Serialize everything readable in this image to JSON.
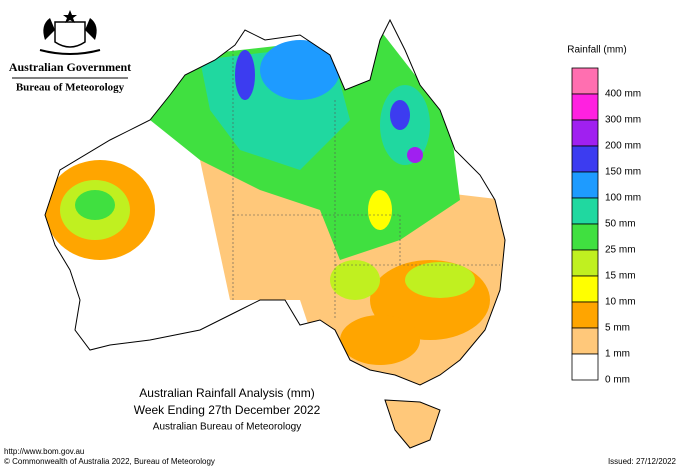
{
  "header": {
    "government": "Australian Government",
    "bureau": "Bureau of Meteorology"
  },
  "legend": {
    "title": "Rainfall (mm)",
    "items": [
      {
        "label": "400 mm",
        "color": "#ff6fb0"
      },
      {
        "label": "300 mm",
        "color": "#ff21e0"
      },
      {
        "label": "200 mm",
        "color": "#a020f0"
      },
      {
        "label": "150 mm",
        "color": "#3c3cf0"
      },
      {
        "label": "100 mm",
        "color": "#1e9bff"
      },
      {
        "label": "50 mm",
        "color": "#20d8a0"
      },
      {
        "label": "25 mm",
        "color": "#40e040"
      },
      {
        "label": "15 mm",
        "color": "#c0f020"
      },
      {
        "label": "10 mm",
        "color": "#ffff00"
      },
      {
        "label": "5 mm",
        "color": "#ffa500"
      },
      {
        "label": "1 mm",
        "color": "#ffc87a"
      },
      {
        "label": "0 mm",
        "color": "#ffffff"
      }
    ]
  },
  "caption": {
    "title": "Australian Rainfall Analysis (mm)",
    "subtitle": "Week Ending 27th December 2022",
    "source": "Australian Bureau of Meteorology"
  },
  "footer": {
    "url": "http://www.bom.gov.au",
    "copyright": "© Commonwealth of Australia 2022, Bureau of Meteorology",
    "issued": "Issued: 27/12/2022"
  }
}
